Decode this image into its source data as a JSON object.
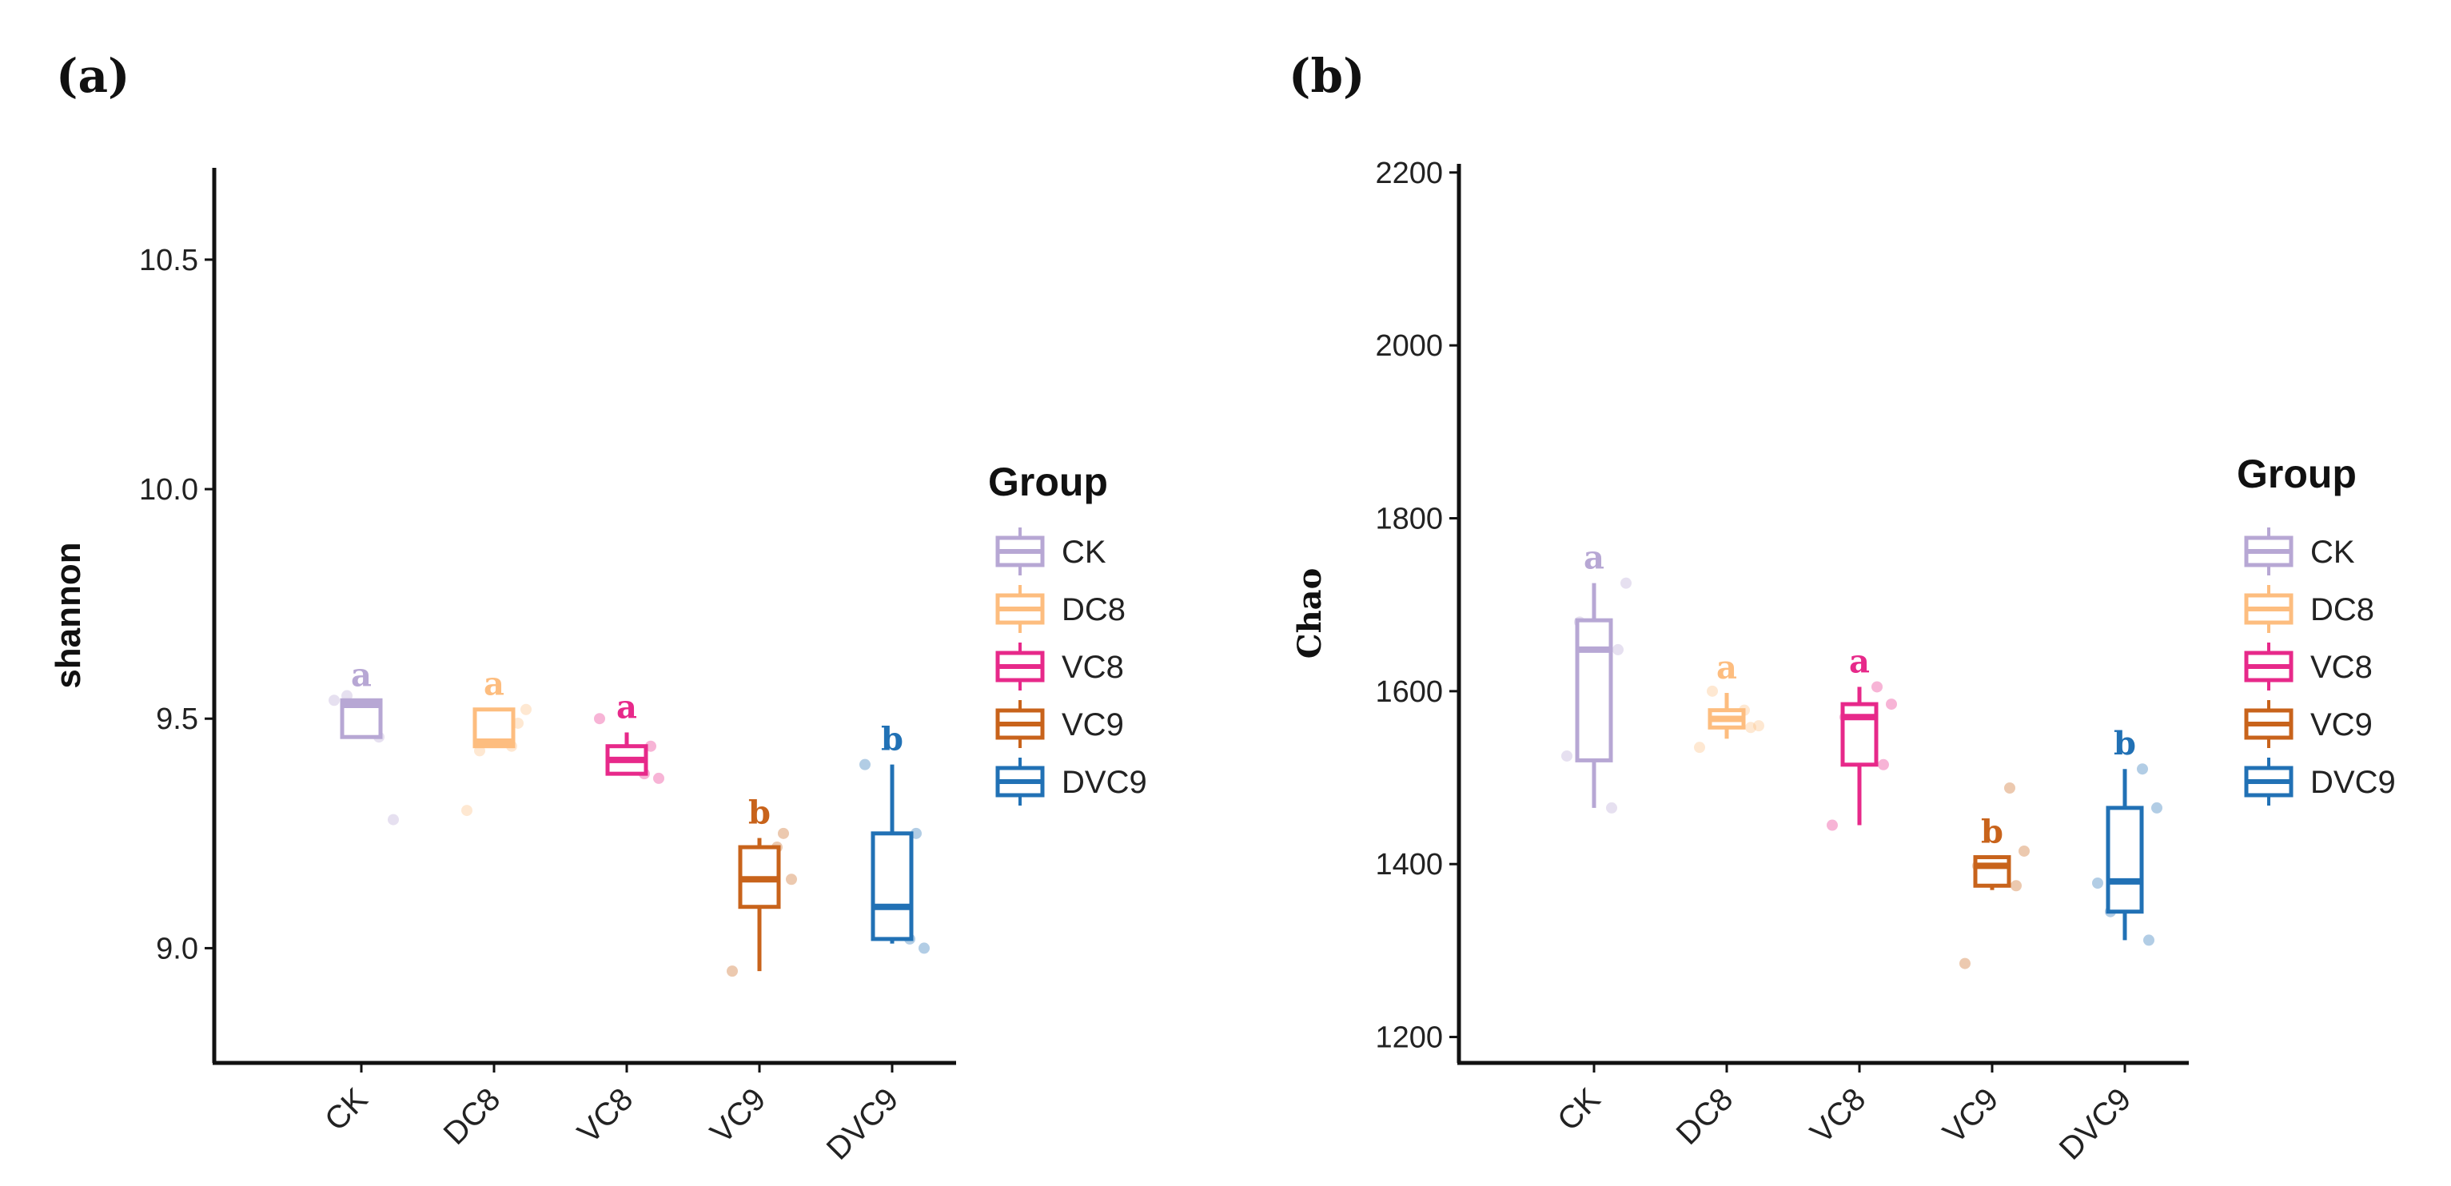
{
  "chart_data": [
    {
      "type": "box",
      "panel_label": "(a)",
      "ylabel": "shannon",
      "xlabel": "",
      "ylim": [
        8.75,
        10.7
      ],
      "yticks": [
        9.0,
        9.5,
        10.0,
        10.5
      ],
      "ytick_labels": [
        "9.0",
        "9.5",
        "10.0",
        "10.5"
      ],
      "categories": [
        "CK",
        "DC8",
        "VC8",
        "VC9",
        "DVC9"
      ],
      "boxes": [
        {
          "group": "CK",
          "min": 9.46,
          "q1": 9.46,
          "median": 9.53,
          "q3": 9.54,
          "max": 9.54,
          "points": [
            9.54,
            9.46,
            9.28,
            9.55
          ],
          "sig": "a"
        },
        {
          "group": "DC8",
          "min": 9.44,
          "q1": 9.44,
          "median": 9.45,
          "q3": 9.52,
          "max": 9.52,
          "points": [
            9.3,
            9.44,
            9.52,
            9.43,
            9.49
          ],
          "sig": "a"
        },
        {
          "group": "VC8",
          "min": 9.38,
          "q1": 9.38,
          "median": 9.41,
          "q3": 9.44,
          "max": 9.47,
          "points": [
            9.5,
            9.38,
            9.37,
            9.41,
            9.44
          ],
          "sig": "a"
        },
        {
          "group": "VC9",
          "min": 8.95,
          "q1": 9.09,
          "median": 9.15,
          "q3": 9.22,
          "max": 9.24,
          "points": [
            8.95,
            9.22,
            9.15,
            9.14,
            9.25
          ],
          "sig": "b"
        },
        {
          "group": "DVC9",
          "min": 9.01,
          "q1": 9.02,
          "median": 9.09,
          "q3": 9.25,
          "max": 9.4,
          "points": [
            9.4,
            9.02,
            9.0,
            9.1,
            9.25
          ],
          "sig": "b"
        }
      ],
      "legend": {
        "title": "Group",
        "position": "right",
        "items": [
          "CK",
          "DC8",
          "VC8",
          "VC9",
          "DVC9"
        ]
      }
    },
    {
      "type": "box",
      "panel_label": "(b)",
      "ylabel": "Chao",
      "xlabel": "",
      "ylim": [
        1170,
        2210
      ],
      "yticks": [
        1200,
        1400,
        1600,
        1800,
        2000,
        2200
      ],
      "ytick_labels": [
        "1200",
        "1400",
        "1600",
        "1800",
        "2000",
        "2200"
      ],
      "categories": [
        "CK",
        "DC8",
        "VC8",
        "VC9",
        "DVC9"
      ],
      "boxes": [
        {
          "group": "CK",
          "min": 1465,
          "q1": 1520,
          "median": 1648,
          "q3": 1682,
          "max": 1725,
          "points": [
            1525,
            1465,
            1725,
            1680,
            1648
          ],
          "sig": "a"
        },
        {
          "group": "DC8",
          "min": 1545,
          "q1": 1558,
          "median": 1568,
          "q3": 1578,
          "max": 1598,
          "points": [
            1535,
            1578,
            1560,
            1600,
            1558
          ],
          "sig": "a"
        },
        {
          "group": "VC8",
          "min": 1445,
          "q1": 1515,
          "median": 1570,
          "q3": 1585,
          "max": 1605,
          "points": [
            1445,
            1605,
            1585,
            1570,
            1515
          ],
          "sig": "a"
        },
        {
          "group": "VC9",
          "min": 1370,
          "q1": 1375,
          "median": 1398,
          "q3": 1408,
          "max": 1408,
          "points": [
            1285,
            1488,
            1415,
            1398,
            1375
          ],
          "sig": "b"
        },
        {
          "group": "DVC9",
          "min": 1312,
          "q1": 1345,
          "median": 1380,
          "q3": 1465,
          "max": 1510,
          "points": [
            1378,
            1510,
            1465,
            1345,
            1312
          ],
          "sig": "b"
        }
      ],
      "legend": {
        "title": "Group",
        "position": "right",
        "items": [
          "CK",
          "DC8",
          "VC8",
          "VC9",
          "DVC9"
        ]
      }
    }
  ],
  "colors": {
    "CK": "#b7a7d4",
    "DC8": "#fdbd7f",
    "VC8": "#e7298a",
    "VC9": "#c8631b",
    "DVC9": "#2171b5"
  }
}
